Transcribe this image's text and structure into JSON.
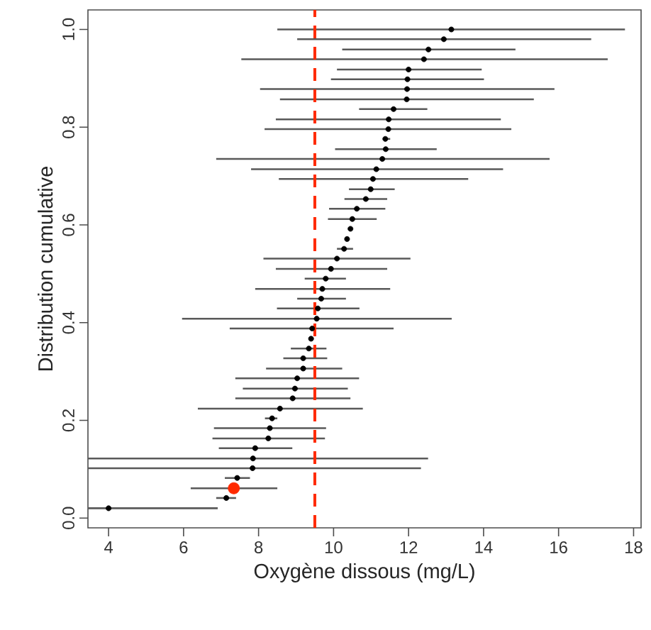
{
  "chart_data": {
    "type": "scatter",
    "xlabel": "Oxygène dissous (mg/L)",
    "ylabel": "Distribution cumulative",
    "xlim": [
      3.45,
      18.2
    ],
    "xticks": [
      4,
      6,
      8,
      10,
      12,
      14,
      16,
      18
    ],
    "ylim": [
      -0.02,
      1.04
    ],
    "yticks": [
      {
        "value": 0,
        "label": "0.0"
      },
      0.2,
      0.4,
      0.6,
      0.8,
      {
        "value": 1,
        "label": "1.0"
      }
    ],
    "marker": "circle",
    "ref_lines": [
      {
        "axis": "x",
        "value": 9.5,
        "color": "#ff2a00",
        "line_style": "dashed"
      }
    ],
    "series": [
      {
        "color": "#000000",
        "x": [
          4.0,
          7.14,
          7.43,
          7.84,
          7.85,
          7.91,
          8.26,
          8.3,
          8.36,
          8.57,
          8.91,
          8.97,
          9.03,
          9.19,
          9.19,
          9.34,
          9.4,
          9.43,
          9.55,
          9.58,
          9.67,
          9.7,
          9.79,
          9.93,
          10.09,
          10.28,
          10.36,
          10.45,
          10.5,
          10.62,
          10.86,
          10.99,
          11.05,
          11.14,
          11.3,
          11.39,
          11.38,
          11.46,
          11.47,
          11.6,
          11.95,
          11.96,
          11.97,
          12.0,
          12.41,
          12.53,
          12.94,
          13.14
        ],
        "values": [
          0.02,
          0.041,
          0.082,
          0.102,
          0.122,
          0.143,
          0.163,
          0.184,
          0.204,
          0.224,
          0.245,
          0.265,
          0.286,
          0.306,
          0.327,
          0.347,
          0.367,
          0.388,
          0.408,
          0.429,
          0.449,
          0.469,
          0.49,
          0.51,
          0.531,
          0.551,
          0.571,
          0.592,
          0.612,
          0.633,
          0.653,
          0.673,
          0.694,
          0.714,
          0.735,
          0.755,
          0.776,
          0.796,
          0.816,
          0.837,
          0.857,
          0.878,
          0.898,
          0.918,
          0.939,
          0.959,
          0.98,
          1.0
        ],
        "xerrors": [
          [
            3.45,
            6.91
          ],
          [
            6.87,
            7.4
          ],
          [
            7.1,
            7.77
          ],
          [
            3.45,
            12.33
          ],
          [
            3.45,
            12.52
          ],
          [
            6.94,
            8.9
          ],
          [
            6.77,
            9.77
          ],
          [
            6.81,
            9.8
          ],
          [
            8.17,
            8.5
          ],
          [
            6.38,
            10.78
          ],
          [
            7.38,
            10.45
          ],
          [
            7.58,
            10.38
          ],
          [
            7.38,
            10.68
          ],
          [
            8.2,
            10.23
          ],
          [
            8.66,
            9.83
          ],
          [
            8.86,
            9.81
          ],
          null,
          [
            7.23,
            11.6
          ],
          [
            5.96,
            13.15
          ],
          [
            8.49,
            10.69
          ],
          [
            9.03,
            10.33
          ],
          [
            7.91,
            11.51
          ],
          [
            9.23,
            10.33
          ],
          [
            8.46,
            11.43
          ],
          [
            8.13,
            12.05
          ],
          [
            10.09,
            10.52
          ],
          null,
          null,
          [
            9.85,
            11.15
          ],
          [
            9.88,
            11.38
          ],
          [
            10.29,
            11.43
          ],
          [
            10.41,
            11.63
          ],
          [
            8.54,
            13.59
          ],
          [
            7.8,
            14.52
          ],
          [
            6.87,
            15.76
          ],
          [
            10.04,
            12.75
          ],
          [
            11.31,
            11.51
          ],
          [
            8.16,
            14.74
          ],
          [
            8.46,
            14.46
          ],
          [
            10.68,
            12.5
          ],
          [
            8.57,
            15.34
          ],
          [
            8.04,
            15.89
          ],
          [
            9.93,
            14.01
          ],
          [
            10.09,
            13.95
          ],
          [
            7.54,
            17.31
          ],
          [
            10.23,
            14.85
          ],
          [
            9.03,
            16.87
          ],
          [
            8.5,
            17.77
          ]
        ]
      },
      {
        "color": "#ff2a00",
        "x": [
          7.34
        ],
        "values": [
          0.061
        ],
        "xerrors": [
          [
            6.19,
            8.5
          ]
        ]
      }
    ]
  }
}
